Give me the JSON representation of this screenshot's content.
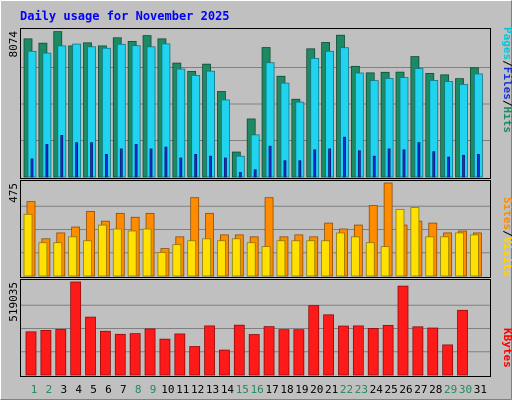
{
  "chart_data": {
    "type": "bar",
    "title": "Daily usage for November 2025",
    "categories": [
      "1",
      "2",
      "3",
      "4",
      "5",
      "6",
      "7",
      "8",
      "9",
      "10",
      "11",
      "12",
      "13",
      "14",
      "15",
      "16",
      "17",
      "18",
      "19",
      "20",
      "21",
      "22",
      "23",
      "24",
      "25",
      "26",
      "27",
      "28",
      "29",
      "30",
      "31"
    ],
    "weekend_days": [
      "1",
      "2",
      "8",
      "9",
      "15",
      "16",
      "22",
      "23",
      "29",
      "30"
    ],
    "legend_right_top": [
      "Pages",
      "/",
      "Files",
      "/",
      "Hits"
    ],
    "legend_right_middle": [
      "Sites",
      "/",
      "Visits"
    ],
    "legend_right_bottom": [
      "KBytes"
    ],
    "panels": [
      {
        "name": "hits-files-pages",
        "ymax_label": "8074",
        "ylim": [
          0,
          8074
        ],
        "series": [
          {
            "name": "Hits",
            "color": "#1e8a64",
            "values": [
              7640,
              7400,
              8040,
              7250,
              7420,
              7250,
              7700,
              7500,
              7820,
              7640,
              6300,
              5840,
              6240,
              4730,
              1380,
              3210,
              7160,
              5570,
              4300,
              7090,
              7440,
              7840,
              6120,
              5760,
              5790,
              5800,
              6660,
              5730,
              5650,
              5440,
              6040
            ]
          },
          {
            "name": "Files",
            "color": "#20d4f0",
            "values": [
              6950,
              6850,
              7250,
              7350,
              7200,
              7120,
              7340,
              7260,
              7200,
              7360,
              5970,
              5620,
              5850,
              4260,
              1150,
              2330,
              6320,
              5190,
              4140,
              6560,
              6950,
              7150,
              5750,
              5330,
              5450,
              5500,
              6000,
              5340,
              5280,
              5120,
              5700
            ]
          },
          {
            "name": "Pages",
            "color": "#1a2ed8",
            "values": [
              1000,
              1800,
              2300,
              1900,
              1900,
              1250,
              1550,
              1800,
              1550,
              1650,
              1050,
              1250,
              1150,
              1050,
              250,
              400,
              1700,
              900,
              900,
              1500,
              1550,
              2200,
              1450,
              1150,
              1550,
              1500,
              1900,
              1400,
              1100,
              1200,
              1250
            ]
          }
        ]
      },
      {
        "name": "visits-sites",
        "ymax_label": "475",
        "ylim": [
          0,
          475
        ],
        "series": [
          {
            "name": "Visits",
            "color": "#ff8c00",
            "values": [
              380,
              190,
              220,
              250,
              330,
              280,
              320,
              300,
              320,
              140,
              200,
              400,
              320,
              210,
              210,
              200,
              400,
              200,
              210,
              200,
              270,
              240,
              260,
              360,
              475,
              260,
              280,
              270,
              220,
              230,
              220
            ]
          },
          {
            "name": "Sites",
            "color": "#ffe000",
            "values": [
              315,
              170,
              170,
              200,
              180,
              260,
              240,
              230,
              240,
              120,
              160,
              180,
              190,
              180,
              190,
              170,
              150,
              180,
              180,
              180,
              180,
              220,
              200,
              170,
              150,
              340,
              350,
              200,
              200,
              220,
              210
            ]
          }
        ]
      },
      {
        "name": "kbytes",
        "ymax_label": "519035",
        "ylim": [
          0,
          519035
        ],
        "series": [
          {
            "name": "KBytes",
            "color": "#ff1a1a",
            "values": [
              241000,
              249000,
              254000,
              519035,
              323000,
              244000,
              227000,
              231000,
              257000,
              200000,
              229000,
              159000,
              274000,
              139000,
              278000,
              226000,
              270000,
              253000,
              253000,
              387000,
              336000,
              273000,
              274000,
              260000,
              277000,
              496000,
              269000,
              262000,
              168000,
              361000,
              0
            ]
          }
        ]
      }
    ]
  }
}
